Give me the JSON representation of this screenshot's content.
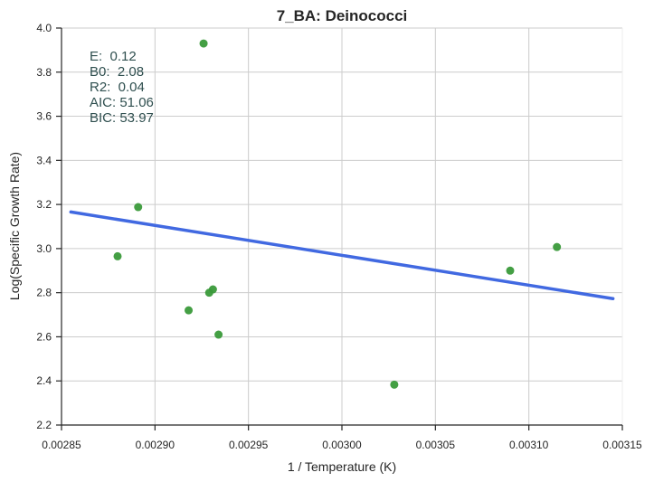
{
  "chart_data": {
    "type": "scatter",
    "title": "7_BA: Deinococci",
    "xlabel": "1 / Temperature (K)",
    "ylabel": "Log(Specific Growth Rate)",
    "xlim": [
      0.00285,
      0.00315
    ],
    "ylim": [
      2.2,
      4.0
    ],
    "x_ticks": [
      "0.00285",
      "0.00290",
      "0.00295",
      "0.00300",
      "0.00305",
      "0.00310",
      "0.00315"
    ],
    "y_ticks": [
      "2.2",
      "2.4",
      "2.6",
      "2.8",
      "3.0",
      "3.2",
      "3.4",
      "3.6",
      "3.8",
      "4.0"
    ],
    "grid": true,
    "points": [
      {
        "x": 0.00288,
        "y": 2.965
      },
      {
        "x": 0.002891,
        "y": 3.188
      },
      {
        "x": 0.002918,
        "y": 2.72
      },
      {
        "x": 0.002926,
        "y": 3.93
      },
      {
        "x": 0.002929,
        "y": 2.8
      },
      {
        "x": 0.002931,
        "y": 2.815
      },
      {
        "x": 0.002934,
        "y": 2.61
      },
      {
        "x": 0.003028,
        "y": 2.383
      },
      {
        "x": 0.00309,
        "y": 2.9
      },
      {
        "x": 0.003115,
        "y": 3.007
      }
    ],
    "fit_line": {
      "x": [
        0.002855,
        0.003145
      ],
      "y": [
        3.166,
        2.773
      ]
    },
    "stats": [
      "E:  0.12",
      "B0:  2.08",
      "R2:  0.04",
      "AIC: 51.06",
      "BIC: 53.97"
    ],
    "colors": {
      "points": "#3a9a3a",
      "fit_line": "#4169e1",
      "grid": "#cccccc",
      "stats_text": "#2f4f4f"
    }
  }
}
